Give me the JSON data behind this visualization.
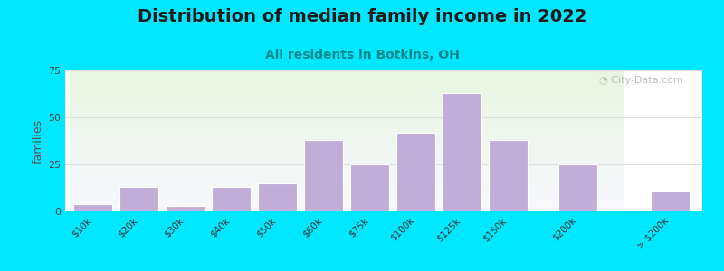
{
  "title": "Distribution of median family income in 2022",
  "subtitle": "All residents in Botkins, OH",
  "ylabel": "families",
  "categories": [
    "$10k",
    "$20k",
    "$30k",
    "$40k",
    "$50k",
    "$60k",
    "$75k",
    "$100k",
    "$125k",
    "$150k",
    "$200k",
    "> $200k"
  ],
  "values": [
    4,
    13,
    3,
    13,
    15,
    38,
    25,
    42,
    63,
    38,
    25,
    11
  ],
  "bar_color": "#c0aed8",
  "bar_edge_color": "#d0c0e0",
  "ylim": [
    0,
    75
  ],
  "yticks": [
    0,
    25,
    50,
    75
  ],
  "background_outer": "#00e8ff",
  "title_fontsize": 14,
  "subtitle_fontsize": 10,
  "subtitle_color": "#008888",
  "watermark_text": "◔ City-Data.com",
  "watermark_color": "#b0b0b0"
}
